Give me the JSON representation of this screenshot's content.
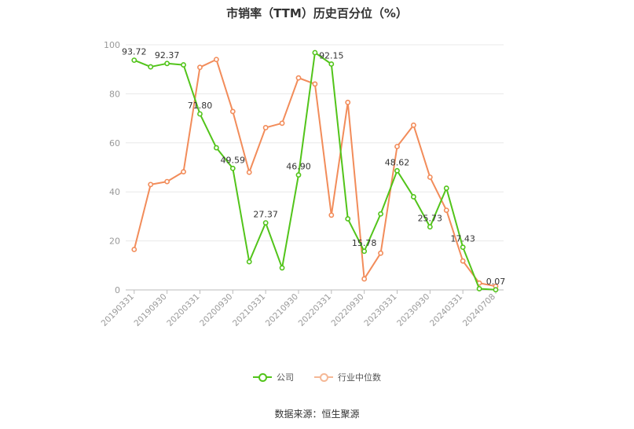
{
  "title": "市销率（TTM）历史百分位（%）",
  "source": "数据来源：恒生聚源",
  "colors": {
    "company": "#52c41a",
    "industry": "#f28c5a",
    "grid": "#e8e8e8",
    "axis": "#999999"
  },
  "chart_data": {
    "type": "line",
    "title": "市销率（TTM）历史百分位（%）",
    "ylim": [
      0,
      100
    ],
    "yticks": [
      0,
      20,
      40,
      60,
      80,
      100
    ],
    "grid": true,
    "legend_position": "bottom",
    "x_tick_labels": [
      "20190331",
      "20190930",
      "20200331",
      "20200930",
      "20210331",
      "20210930",
      "20220331",
      "20220930",
      "20230331",
      "20230930",
      "20240331",
      "20240708"
    ],
    "x": [
      "20190331",
      "20190630",
      "20190930",
      "20191231",
      "20200331",
      "20200630",
      "20200930",
      "20201231",
      "20210331",
      "20210630",
      "20210930",
      "20211231",
      "20220331",
      "20220630",
      "20220930",
      "20221231",
      "20230331",
      "20230630",
      "20230930",
      "20231231",
      "20240331",
      "20240630",
      "20240708"
    ],
    "series": [
      {
        "name": "公司",
        "values": [
          93.72,
          91.0,
          92.37,
          91.8,
          71.8,
          58.0,
          49.59,
          11.5,
          27.37,
          9.0,
          46.9,
          96.8,
          92.15,
          29.0,
          15.78,
          31.0,
          48.62,
          38.0,
          25.73,
          41.5,
          17.43,
          0.5,
          0.07
        ],
        "labels": {
          "0": "93.72",
          "2": "92.37",
          "4": "71.80",
          "6": "49.59",
          "8": "27.37",
          "10": "46.90",
          "12": "92.15",
          "14": "15.78",
          "16": "48.62",
          "18": "25.73",
          "20": "17.43",
          "22": "0.07"
        }
      },
      {
        "name": "行业中位数",
        "values": [
          16.5,
          43.0,
          44.2,
          48.2,
          90.8,
          94.0,
          72.8,
          48.0,
          66.2,
          68.0,
          86.5,
          84.0,
          30.5,
          76.5,
          4.5,
          15.0,
          58.5,
          67.2,
          46.0,
          32.5,
          11.8,
          2.8,
          1.5
        ]
      }
    ]
  }
}
